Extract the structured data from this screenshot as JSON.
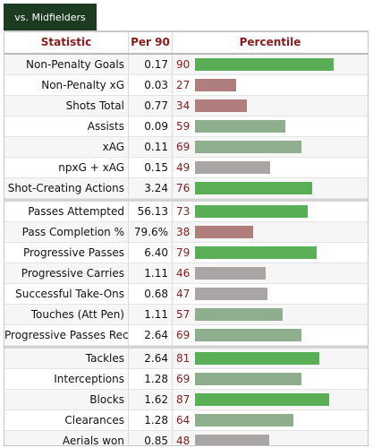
{
  "tab": {
    "label": "vs. Midfielders"
  },
  "headers": {
    "statistic": "Statistic",
    "per90": "Per 90",
    "percentile": "Percentile"
  },
  "colors": {
    "high": "#5aae56",
    "mid": "#8fae8d",
    "neutral": "#a9a5a5",
    "low": "#b07e7d"
  },
  "rows": [
    {
      "stat": "Non-Penalty Goals",
      "per90": "0.17",
      "pct": "90",
      "group": 0
    },
    {
      "stat": "Non-Penalty xG",
      "per90": "0.03",
      "pct": "27",
      "group": 0
    },
    {
      "stat": "Shots Total",
      "per90": "0.77",
      "pct": "34",
      "group": 0
    },
    {
      "stat": "Assists",
      "per90": "0.09",
      "pct": "59",
      "group": 0
    },
    {
      "stat": "xAG",
      "per90": "0.11",
      "pct": "69",
      "group": 0
    },
    {
      "stat": "npxG + xAG",
      "per90": "0.15",
      "pct": "49",
      "group": 0
    },
    {
      "stat": "Shot-Creating Actions",
      "per90": "3.24",
      "pct": "76",
      "group": 0
    },
    {
      "stat": "Passes Attempted",
      "per90": "56.13",
      "pct": "73",
      "group": 1
    },
    {
      "stat": "Pass Completion %",
      "per90": "79.6%",
      "pct": "38",
      "group": 1
    },
    {
      "stat": "Progressive Passes",
      "per90": "6.40",
      "pct": "79",
      "group": 1
    },
    {
      "stat": "Progressive Carries",
      "per90": "1.11",
      "pct": "46",
      "group": 1
    },
    {
      "stat": "Successful Take-Ons",
      "per90": "0.68",
      "pct": "47",
      "group": 1
    },
    {
      "stat": "Touches (Att Pen)",
      "per90": "1.11",
      "pct": "57",
      "group": 1
    },
    {
      "stat": "Progressive Passes Rec",
      "per90": "2.64",
      "pct": "69",
      "group": 1
    },
    {
      "stat": "Tackles",
      "per90": "2.64",
      "pct": "81",
      "group": 2
    },
    {
      "stat": "Interceptions",
      "per90": "1.28",
      "pct": "69",
      "group": 2
    },
    {
      "stat": "Blocks",
      "per90": "1.62",
      "pct": "87",
      "group": 2
    },
    {
      "stat": "Clearances",
      "per90": "1.28",
      "pct": "64",
      "group": 2
    },
    {
      "stat": "Aerials won",
      "per90": "0.85",
      "pct": "48",
      "group": 2
    }
  ]
}
